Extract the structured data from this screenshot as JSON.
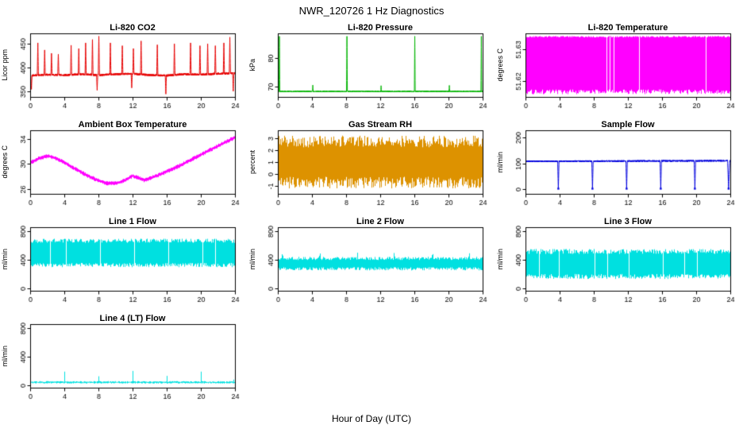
{
  "header": {
    "title": "NWR_120726 1 Hz Diagnostics"
  },
  "footer": {
    "xlabel": "Hour of Day (UTC)"
  },
  "chart_data": [
    {
      "title": "Li-820 CO2",
      "ylabel": "Licor ppm",
      "type": "line",
      "color": "#e60000",
      "xlim": [
        0,
        24
      ],
      "ylim": [
        338,
        472
      ],
      "xticks": [
        0,
        4,
        8,
        12,
        16,
        20,
        24
      ],
      "yticks": [
        350,
        400,
        450
      ],
      "series": {
        "kind": "spiky",
        "noise": 2.2,
        "drift": [
          [
            0,
            383
          ],
          [
            2,
            385
          ],
          [
            4,
            384
          ],
          [
            6,
            386
          ],
          [
            8,
            384
          ],
          [
            10,
            386
          ],
          [
            12,
            387
          ],
          [
            14,
            384
          ],
          [
            16,
            383
          ],
          [
            18,
            386
          ],
          [
            20,
            385
          ],
          [
            22,
            387
          ],
          [
            24,
            388
          ]
        ],
        "spikes": [
          {
            "t": 0.15,
            "v": 354
          },
          {
            "t": 0.9,
            "v": 452
          },
          {
            "t": 1.7,
            "v": 437
          },
          {
            "t": 2.5,
            "v": 430
          },
          {
            "t": 3.3,
            "v": 428
          },
          {
            "t": 4.8,
            "v": 447
          },
          {
            "t": 5.7,
            "v": 440
          },
          {
            "t": 6.5,
            "v": 452
          },
          {
            "t": 7.3,
            "v": 459
          },
          {
            "t": 7.85,
            "v": 352
          },
          {
            "t": 8.05,
            "v": 466
          },
          {
            "t": 9.4,
            "v": 452
          },
          {
            "t": 10.8,
            "v": 446
          },
          {
            "t": 11.9,
            "v": 357
          },
          {
            "t": 12.1,
            "v": 440
          },
          {
            "t": 13.0,
            "v": 456
          },
          {
            "t": 14.9,
            "v": 448
          },
          {
            "t": 15.9,
            "v": 344
          },
          {
            "t": 16.9,
            "v": 450
          },
          {
            "t": 18.8,
            "v": 452
          },
          {
            "t": 19.9,
            "v": 446
          },
          {
            "t": 20.8,
            "v": 450
          },
          {
            "t": 21.7,
            "v": 446
          },
          {
            "t": 22.7,
            "v": 452
          },
          {
            "t": 23.4,
            "v": 464
          },
          {
            "t": 23.8,
            "v": 350
          }
        ]
      }
    },
    {
      "title": "Li-820 Pressure",
      "ylabel": "kPa",
      "type": "line",
      "color": "#00b400",
      "xlim": [
        0,
        24
      ],
      "ylim": [
        66.5,
        88.5
      ],
      "xticks": [
        0,
        4,
        8,
        12,
        16,
        20,
        24
      ],
      "yticks": [
        70,
        80
      ],
      "series": {
        "kind": "spiky",
        "baseline": 68.4,
        "noise": 0.2,
        "spikes": [
          {
            "t": 0.18,
            "v": 87.5,
            "w": 0.05
          },
          {
            "t": 4.1,
            "v": 70.6,
            "w": 0.05
          },
          {
            "t": 8.1,
            "v": 87.5,
            "w": 0.05
          },
          {
            "t": 12.1,
            "v": 70.4,
            "w": 0.05
          },
          {
            "t": 16.05,
            "v": 87.5,
            "w": 0.05
          },
          {
            "t": 20.1,
            "v": 70.5,
            "w": 0.05
          },
          {
            "t": 23.85,
            "v": 87.5,
            "w": 0.05
          }
        ]
      }
    },
    {
      "title": "Li-820 Temperature",
      "ylabel": "degrees C",
      "type": "line",
      "color": "#ff00ff",
      "xlim": [
        0,
        24
      ],
      "ylim": [
        51.6152,
        51.6348
      ],
      "xticks": [
        0,
        4,
        8,
        12,
        16,
        20,
        24
      ],
      "yticks": [
        51.62,
        51.63
      ],
      "series": {
        "kind": "block",
        "min": 51.616,
        "max": 51.634,
        "jitter": 0.0015,
        "gaps": [
          9.45,
          9.9,
          10.3,
          13.3,
          21.1
        ],
        "gapw": 0.05
      }
    },
    {
      "title": "Ambient Box Temperature",
      "ylabel": "degrees C",
      "type": "line",
      "color": "#ff00ff",
      "xlim": [
        0,
        24
      ],
      "ylim": [
        25.2,
        35.4
      ],
      "xticks": [
        0,
        4,
        8,
        12,
        16,
        20,
        24
      ],
      "yticks": [
        26,
        30,
        34
      ],
      "series": {
        "kind": "trend",
        "spread": 0.35,
        "points": [
          [
            0,
            30.2
          ],
          [
            1,
            30.9
          ],
          [
            2,
            31.3
          ],
          [
            3,
            30.9
          ],
          [
            4,
            30.2
          ],
          [
            5,
            29.4
          ],
          [
            6,
            28.6
          ],
          [
            7,
            27.9
          ],
          [
            8,
            27.3
          ],
          [
            9,
            26.9
          ],
          [
            10,
            26.9
          ],
          [
            11,
            27.3
          ],
          [
            12,
            28.1
          ],
          [
            13.3,
            27.4
          ],
          [
            14,
            27.7
          ],
          [
            15,
            28.2
          ],
          [
            16,
            28.8
          ],
          [
            17,
            29.4
          ],
          [
            18,
            30.1
          ],
          [
            19,
            30.8
          ],
          [
            20,
            31.5
          ],
          [
            21,
            32.2
          ],
          [
            22,
            32.9
          ],
          [
            23,
            33.6
          ],
          [
            24,
            34.3
          ]
        ]
      }
    },
    {
      "title": "Gas Stream RH",
      "ylabel": "percent",
      "type": "line",
      "color": "#dd9200",
      "xlim": [
        0,
        24
      ],
      "ylim": [
        -1.7,
        3.7
      ],
      "xticks": [
        0,
        4,
        8,
        12,
        16,
        20,
        24
      ],
      "yticks": [
        -1,
        0,
        1,
        2,
        3
      ],
      "series": {
        "kind": "band",
        "min": -1.25,
        "max": 3.25,
        "jitter": 1.0
      }
    },
    {
      "title": "Sample Flow",
      "ylabel": "ml/min",
      "type": "line",
      "color": "#0000dd",
      "xlim": [
        0,
        24
      ],
      "ylim": [
        -18,
        228
      ],
      "xticks": [
        0,
        4,
        8,
        12,
        16,
        20,
        24
      ],
      "yticks": [
        0,
        100,
        200
      ],
      "series": {
        "kind": "spiky",
        "noise": 3,
        "dots": true,
        "drift": [
          [
            0,
            108
          ],
          [
            24,
            110
          ]
        ],
        "spikes": [
          {
            "t": 3.85,
            "v": 2,
            "w": 0.08
          },
          {
            "t": 7.85,
            "v": 2,
            "w": 0.08
          },
          {
            "t": 11.85,
            "v": 2,
            "w": 0.08
          },
          {
            "t": 15.85,
            "v": 2,
            "w": 0.08
          },
          {
            "t": 19.85,
            "v": 2,
            "w": 0.08
          },
          {
            "t": 23.8,
            "v": 2,
            "w": 0.12
          }
        ]
      }
    },
    {
      "title": "Line 1 Flow",
      "ylabel": "ml/min",
      "type": "line",
      "color": "#00e0e0",
      "xlim": [
        0,
        24
      ],
      "ylim": [
        -30,
        860
      ],
      "xticks": [
        0,
        4,
        8,
        12,
        16,
        20,
        24
      ],
      "yticks": [
        0,
        400,
        800
      ],
      "series": {
        "kind": "band",
        "min": 300,
        "max": 700,
        "jitter": 60,
        "gaps": [
          2.3,
          4.15,
          8.15,
          12.15,
          16.15,
          20.15,
          21.7
        ],
        "gapw": 0.05
      }
    },
    {
      "title": "Line 2 Flow",
      "ylabel": "ml/min",
      "type": "line",
      "color": "#00e0e0",
      "xlim": [
        0,
        24
      ],
      "ylim": [
        -30,
        860
      ],
      "xticks": [
        0,
        4,
        8,
        12,
        16,
        20,
        24
      ],
      "yticks": [
        0,
        400,
        800
      ],
      "series": {
        "kind": "band",
        "min": 255,
        "max": 445,
        "jitter": 45,
        "spikes": [
          {
            "t": 0.5,
            "v": 510,
            "w": 0.08
          },
          {
            "t": 4.9,
            "v": 520,
            "w": 0.08
          },
          {
            "t": 9.3,
            "v": 505,
            "w": 0.08
          },
          {
            "t": 13.6,
            "v": 515,
            "w": 0.08
          },
          {
            "t": 18.1,
            "v": 520,
            "w": 0.08
          },
          {
            "t": 22.4,
            "v": 510,
            "w": 0.08
          }
        ]
      }
    },
    {
      "title": "Line 3 Flow",
      "ylabel": "ml/min",
      "type": "line",
      "color": "#00e0e0",
      "xlim": [
        0,
        24
      ],
      "ylim": [
        -30,
        860
      ],
      "xticks": [
        0,
        4,
        8,
        12,
        16,
        20,
        24
      ],
      "yticks": [
        0,
        400,
        800
      ],
      "series": {
        "kind": "band",
        "min": 135,
        "max": 555,
        "jitter": 70,
        "gaps": [
          1.6,
          3.95,
          6.0,
          8.1,
          9.6,
          12.05,
          16.1,
          18.6,
          20.1
        ],
        "gapw": 0.045
      }
    },
    {
      "title": "Line 4 (LT) Flow",
      "ylabel": "ml/min",
      "type": "line",
      "color": "#00e0e0",
      "xlim": [
        0,
        24
      ],
      "ylim": [
        -30,
        860
      ],
      "xticks": [
        0,
        4,
        8,
        12,
        16,
        20,
        24
      ],
      "yticks": [
        0,
        400,
        800
      ],
      "series": {
        "kind": "band",
        "min": 28,
        "max": 62,
        "jitter": 14,
        "spikes": [
          {
            "t": 4.0,
            "v": 195,
            "w": 0.06
          },
          {
            "t": 8.0,
            "v": 130,
            "w": 0.06
          },
          {
            "t": 12.0,
            "v": 205,
            "w": 0.06
          },
          {
            "t": 16.0,
            "v": 135,
            "w": 0.06
          },
          {
            "t": 20.0,
            "v": 195,
            "w": 0.06
          },
          {
            "t": 23.8,
            "v": 90,
            "w": 0.06
          }
        ]
      }
    }
  ]
}
